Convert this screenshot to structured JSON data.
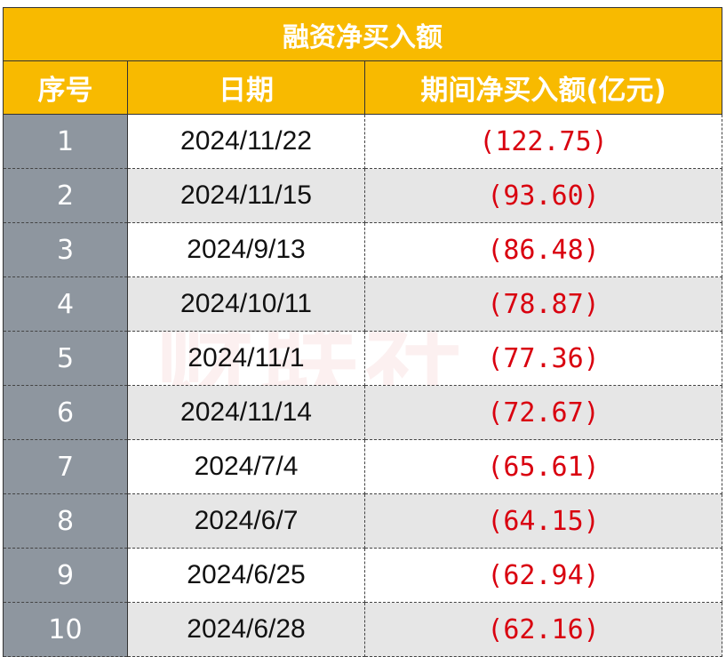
{
  "title": "融资净买入额",
  "columns": [
    "序号",
    "日期",
    "期间净买入额(亿元)"
  ],
  "rows": [
    {
      "index": "1",
      "date": "2024/11/22",
      "value": "(122.75)"
    },
    {
      "index": "2",
      "date": "2024/11/15",
      "value": "(93.60)"
    },
    {
      "index": "3",
      "date": "2024/9/13",
      "value": "(86.48)"
    },
    {
      "index": "4",
      "date": "2024/10/11",
      "value": "(78.87)"
    },
    {
      "index": "5",
      "date": "2024/11/1",
      "value": "(77.36)"
    },
    {
      "index": "6",
      "date": "2024/11/14",
      "value": "(72.67)"
    },
    {
      "index": "7",
      "date": "2024/7/4",
      "value": "(65.61)"
    },
    {
      "index": "8",
      "date": "2024/6/7",
      "value": "(64.15)"
    },
    {
      "index": "9",
      "date": "2024/6/25",
      "value": "(62.94)"
    },
    {
      "index": "10",
      "date": "2024/6/28",
      "value": "(62.16)"
    }
  ],
  "watermark": "财联社",
  "colors": {
    "header": "#F8BA00",
    "index_cell": "#8E969F",
    "value_text": "#D9000F",
    "alt_row": "#E6E6E6"
  }
}
